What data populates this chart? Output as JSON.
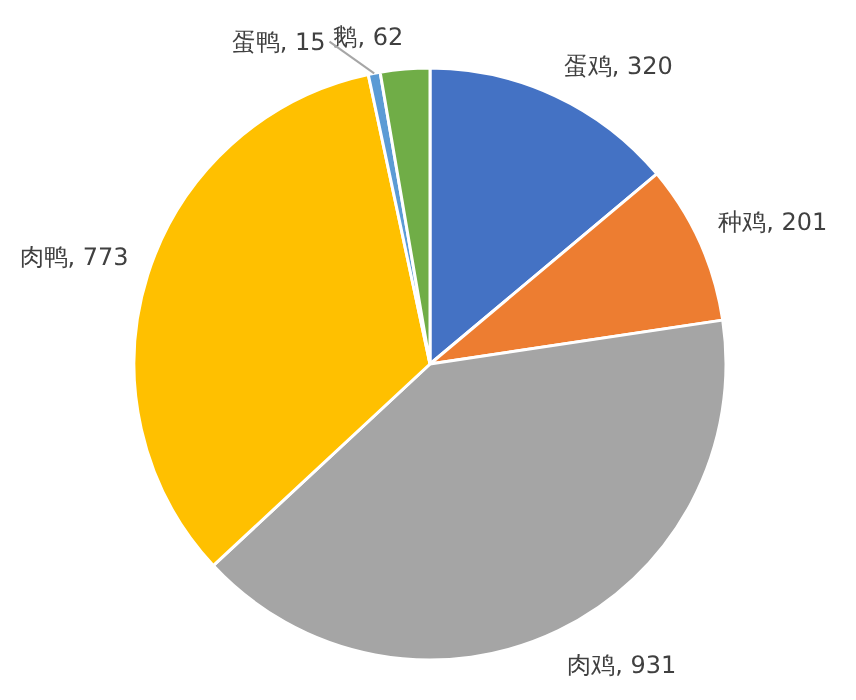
{
  "chart_data": {
    "type": "pie",
    "categories": [
      "蛋鸡",
      "种鸡",
      "肉鸡",
      "肉鸭",
      "蛋鸭",
      "鹅"
    ],
    "values": [
      320,
      201,
      931,
      773,
      15,
      62
    ],
    "value_labels": [
      ", 320",
      ", 201",
      ", 931",
      ", 773",
      ", 15",
      ", 62"
    ],
    "colors": [
      "#4472c4",
      "#ed7d31",
      "#a5a5a5",
      "#ffc000",
      "#5b9bd5",
      "#70ad47"
    ],
    "legend": false
  }
}
